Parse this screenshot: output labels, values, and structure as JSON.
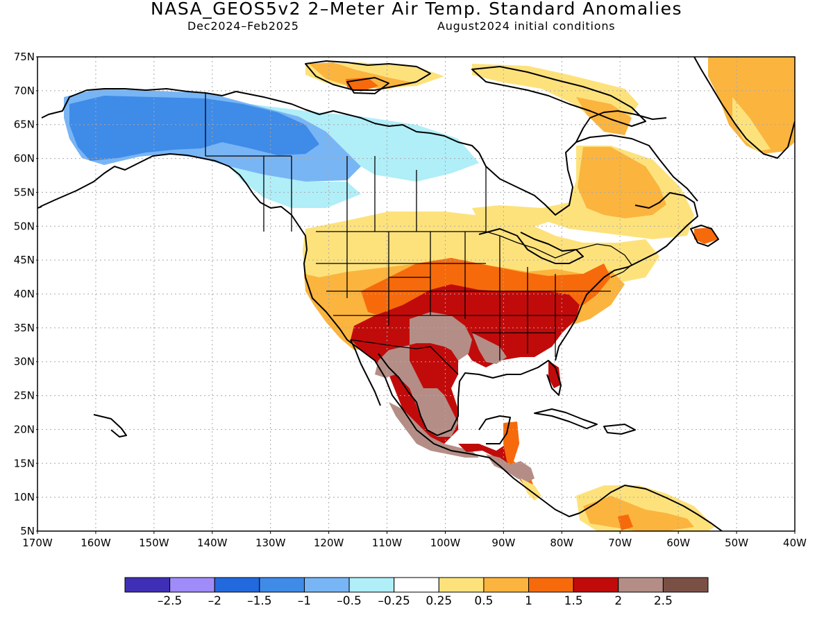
{
  "title": "NASA_GEOS5v2 2–Meter Air Temp. Standard Anomalies",
  "subtitle_left": "Dec2024–Feb2025",
  "subtitle_right": "August2024 initial conditions",
  "map": {
    "lat_labels": [
      "75N",
      "70N",
      "65N",
      "60N",
      "55N",
      "50N",
      "45N",
      "40N",
      "35N",
      "30N",
      "25N",
      "20N",
      "15N",
      "10N",
      "5N"
    ],
    "lon_labels": [
      "170W",
      "160W",
      "150W",
      "140W",
      "130W",
      "120W",
      "110W",
      "100W",
      "90W",
      "80W",
      "70W",
      "60W",
      "50W",
      "40W"
    ],
    "lat_range": [
      5,
      75
    ],
    "lon_range": [
      -170,
      -40
    ],
    "grid": true
  },
  "legend": {
    "colors": [
      "#3f2fb6",
      "#a08cf8",
      "#2369de",
      "#3f8be8",
      "#78b5f5",
      "#b0eef8",
      "#ffffff",
      "#fde27c",
      "#fbb43e",
      "#f66a0b",
      "#c10b0b",
      "#b48e86",
      "#7b5044"
    ],
    "labels": [
      "–2.5",
      "–2",
      "–1.5",
      "–1",
      "–0.5",
      "–0.25",
      "0.25",
      "0.5",
      "1",
      "1.5",
      "2",
      "2.5"
    ]
  },
  "anomaly_regions": [
    {
      "name": "Alaska",
      "category": "-1.5 to -1",
      "color": "#3f8be8"
    },
    {
      "name": "Yukon / western Canada",
      "category": "-1 to -0.5",
      "color": "#78b5f5"
    },
    {
      "name": "Northern Canada",
      "category": "-0.5 to -0.25",
      "color": "#b0eef8"
    },
    {
      "name": "Central & Southern US",
      "category": "1.5 to 2",
      "color": "#c10b0b"
    },
    {
      "name": "Mexico / SW US",
      "category": "2 to 2.5",
      "color": "#b48e86"
    },
    {
      "name": "Greenland / Quebec",
      "category": "0.5 to 1",
      "color": "#fbb43e"
    }
  ]
}
